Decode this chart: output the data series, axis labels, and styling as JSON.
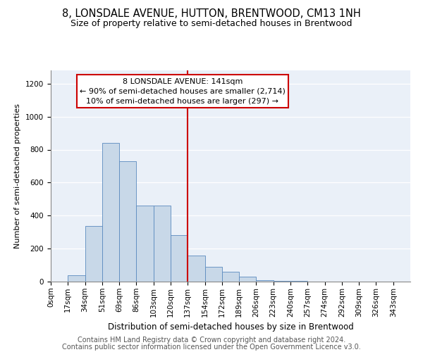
{
  "title": "8, LONSDALE AVENUE, HUTTON, BRENTWOOD, CM13 1NH",
  "subtitle": "Size of property relative to semi-detached houses in Brentwood",
  "xlabel": "Distribution of semi-detached houses by size in Brentwood",
  "ylabel": "Number of semi-detached properties",
  "bin_labels": [
    "0sqm",
    "17sqm",
    "34sqm",
    "51sqm",
    "69sqm",
    "86sqm",
    "103sqm",
    "120sqm",
    "137sqm",
    "154sqm",
    "172sqm",
    "189sqm",
    "206sqm",
    "223sqm",
    "240sqm",
    "257sqm",
    "274sqm",
    "292sqm",
    "309sqm",
    "326sqm",
    "343sqm"
  ],
  "bar_heights": [
    2,
    40,
    335,
    840,
    730,
    460,
    460,
    280,
    160,
    90,
    60,
    30,
    10,
    4,
    4,
    1,
    0,
    0,
    1,
    0,
    0
  ],
  "bar_color": "#c8d8e8",
  "bar_edge_color": "#5a8abf",
  "vline_x": 8.0,
  "vline_color": "#cc0000",
  "annotation_text_line1": "8 LONSDALE AVENUE: 141sqm",
  "annotation_text_line2": "← 90% of semi-detached houses are smaller (2,714)",
  "annotation_text_line3": "10% of semi-detached houses are larger (297) →",
  "ylim": [
    0,
    1280
  ],
  "yticks": [
    0,
    200,
    400,
    600,
    800,
    1000,
    1200
  ],
  "background_color": "#eaf0f8",
  "footer_line1": "Contains HM Land Registry data © Crown copyright and database right 2024.",
  "footer_line2": "Contains public sector information licensed under the Open Government Licence v3.0.",
  "title_fontsize": 10.5,
  "subtitle_fontsize": 9,
  "xlabel_fontsize": 8.5,
  "ylabel_fontsize": 8,
  "tick_fontsize": 7.5,
  "annot_fontsize": 8,
  "footer_fontsize": 7
}
